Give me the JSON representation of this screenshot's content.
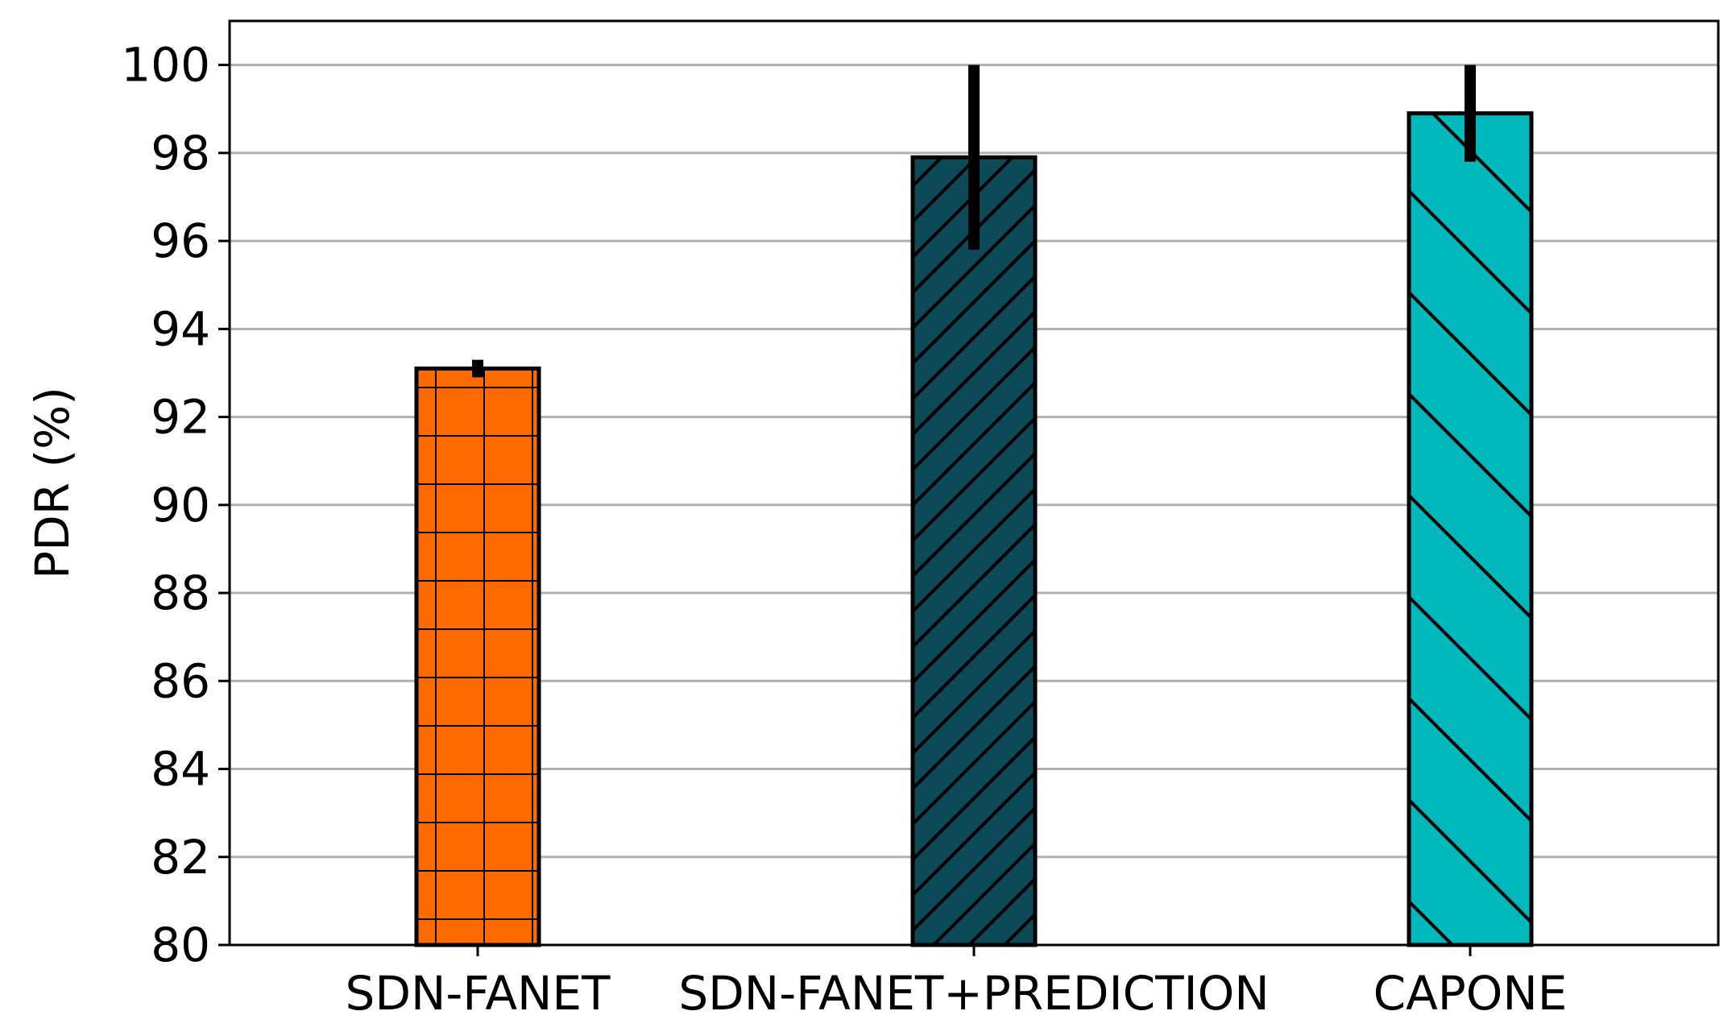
{
  "chart_data": {
    "type": "bar",
    "categories": [
      "SDN-FANET",
      "SDN-FANET+PREDICTION",
      "CAPONE"
    ],
    "values": [
      93.1,
      97.9,
      98.9
    ],
    "errors": [
      {
        "low": 92.9,
        "high": 93.3
      },
      {
        "low": 95.8,
        "high": 100.0
      },
      {
        "low": 97.8,
        "high": 100.0
      }
    ],
    "colors": [
      "#ff6a00",
      "#0d4a57",
      "#00b8bc"
    ],
    "hatches": [
      "grid",
      "forward-diagonal",
      "backward-diagonal"
    ],
    "xlabel": "",
    "ylabel": "PDR (%)",
    "ylim": [
      80,
      101
    ],
    "yticks": [
      80,
      82,
      84,
      86,
      88,
      90,
      92,
      94,
      96,
      98,
      100
    ],
    "grid": "horizontal"
  }
}
